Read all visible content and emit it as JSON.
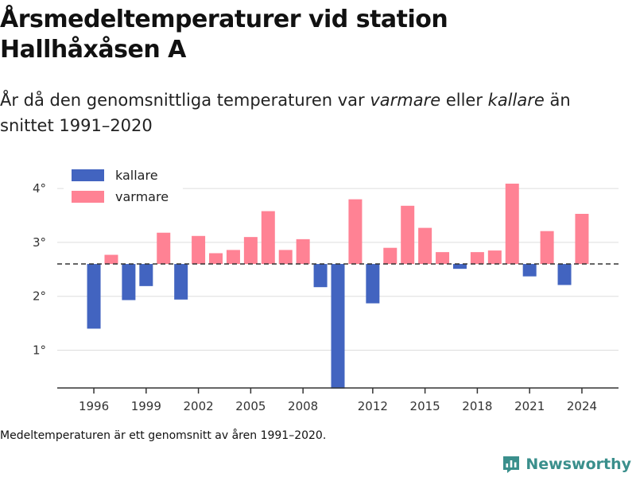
{
  "header": {
    "title": "Årsmedeltemperaturer vid station Hallhåxåsen A",
    "subtitle_pre": "År då den genomsnittliga temperaturen var ",
    "subtitle_warm": "varmare",
    "subtitle_mid": " eller ",
    "subtitle_cold": "kallare",
    "subtitle_post": " än snittet 1991–2020"
  },
  "footnote": "Medeltemperaturen är ett genomsnitt av åren 1991–2020.",
  "brand": {
    "name": "Newsworthy",
    "icon": "newsworthy-logo-icon",
    "color": "#3a8f8c"
  },
  "chart_data": {
    "type": "bar",
    "title": "",
    "xlabel": "",
    "ylabel": "",
    "baseline": 2.6,
    "baseline_style": "dashed",
    "ylim": [
      0.3,
      4.4
    ],
    "xlim": [
      1993.9,
      2026.1
    ],
    "y_ticks": [
      1,
      2,
      3,
      4
    ],
    "y_tick_labels": [
      "1°",
      "2°",
      "3°",
      "4°"
    ],
    "x_ticks": [
      1996,
      1999,
      2002,
      2005,
      2008,
      2012,
      2015,
      2018,
      2021,
      2024
    ],
    "x_tick_labels": [
      "1996",
      "1999",
      "2002",
      "2005",
      "2008",
      "2012",
      "2015",
      "2018",
      "2021",
      "2024"
    ],
    "grid": "horizontal",
    "legend": {
      "position": "top-left",
      "entries": [
        {
          "name": "kallare",
          "color": "#4264c0"
        },
        {
          "name": "varmare",
          "color": "#ff8294"
        }
      ]
    },
    "colors": {
      "kallare": "#4264c0",
      "varmare": "#ff8294"
    },
    "x": [
      1996,
      1997,
      1998,
      1999,
      2000,
      2001,
      2002,
      2003,
      2004,
      2005,
      2006,
      2007,
      2008,
      2009,
      2010,
      2011,
      2012,
      2013,
      2014,
      2015,
      2016,
      2017,
      2018,
      2019,
      2020,
      2021,
      2022,
      2023,
      2024
    ],
    "values": [
      1.4,
      2.77,
      1.93,
      2.19,
      3.18,
      1.94,
      3.12,
      2.8,
      2.86,
      3.1,
      3.58,
      2.86,
      3.06,
      2.17,
      0.29,
      3.8,
      1.87,
      2.9,
      3.68,
      3.27,
      2.82,
      2.51,
      2.82,
      2.85,
      4.09,
      2.37,
      3.21,
      2.21,
      3.53
    ]
  }
}
